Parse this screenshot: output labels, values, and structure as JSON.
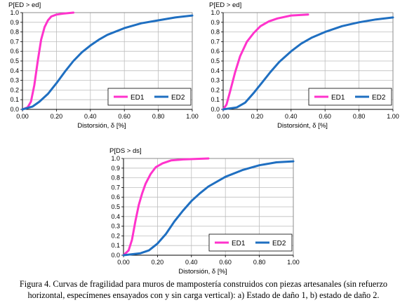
{
  "chart_data": [
    {
      "type": "line",
      "title": "",
      "ylabel": "P[ED > ed]",
      "xlabel": "Distorsión, δ [%]",
      "xlim": [
        0,
        1.0
      ],
      "ylim": [
        0,
        1.0
      ],
      "xticks": [
        "0.00",
        "0.20",
        "0.40",
        "0.60",
        "0.80",
        "1.00"
      ],
      "yticks": [
        "0.0",
        "0.1",
        "0.2",
        "0.3",
        "0.4",
        "0.5",
        "0.6",
        "0.7",
        "0.8",
        "0.9",
        "1.0"
      ],
      "grid": true,
      "legend": "bottom-right",
      "series": [
        {
          "name": "ED1",
          "color": "#ff33cc",
          "x": [
            0.0,
            0.03,
            0.05,
            0.07,
            0.09,
            0.11,
            0.13,
            0.15,
            0.17,
            0.2,
            0.24,
            0.3
          ],
          "y": [
            0.0,
            0.02,
            0.08,
            0.25,
            0.5,
            0.72,
            0.85,
            0.92,
            0.96,
            0.98,
            0.99,
            1.0
          ]
        },
        {
          "name": "ED2",
          "color": "#1f6fc1",
          "x": [
            0.0,
            0.06,
            0.1,
            0.15,
            0.2,
            0.25,
            0.3,
            0.35,
            0.4,
            0.45,
            0.5,
            0.6,
            0.7,
            0.8,
            0.9,
            1.0
          ],
          "y": [
            0.0,
            0.03,
            0.08,
            0.16,
            0.27,
            0.39,
            0.5,
            0.59,
            0.66,
            0.72,
            0.77,
            0.84,
            0.89,
            0.92,
            0.95,
            0.97
          ]
        }
      ]
    },
    {
      "type": "line",
      "title": "",
      "ylabel": "P[ED > ed]",
      "xlabel": "Distorsiónt, δ [%]",
      "xlim": [
        0,
        1.0
      ],
      "ylim": [
        0,
        1.0
      ],
      "xticks": [
        "0.00",
        "0.20",
        "0.40",
        "0.60",
        "0.80",
        "1.00"
      ],
      "yticks": [
        "0.0",
        "0.1",
        "0.2",
        "0.3",
        "0.4",
        "0.5",
        "0.6",
        "0.7",
        "0.8",
        "0.9",
        "1.0"
      ],
      "grid": true,
      "legend": "bottom-right",
      "series": [
        {
          "name": "ED1",
          "color": "#ff33cc",
          "x": [
            0.0,
            0.02,
            0.04,
            0.07,
            0.1,
            0.14,
            0.18,
            0.22,
            0.27,
            0.32,
            0.4,
            0.5
          ],
          "y": [
            0.0,
            0.05,
            0.18,
            0.38,
            0.55,
            0.7,
            0.79,
            0.86,
            0.91,
            0.94,
            0.97,
            0.98
          ]
        },
        {
          "name": "ED2",
          "color": "#1f6fc1",
          "x": [
            0.0,
            0.08,
            0.13,
            0.18,
            0.23,
            0.28,
            0.33,
            0.4,
            0.46,
            0.52,
            0.6,
            0.7,
            0.8,
            0.9,
            1.0
          ],
          "y": [
            0.0,
            0.02,
            0.07,
            0.17,
            0.28,
            0.39,
            0.49,
            0.6,
            0.68,
            0.74,
            0.8,
            0.86,
            0.9,
            0.93,
            0.95
          ]
        }
      ]
    },
    {
      "type": "line",
      "title": "",
      "ylabel": "P[DS > ds]",
      "xlabel": "Distorsión, δ [%]",
      "xlim": [
        0,
        1.0
      ],
      "ylim": [
        0,
        1.0
      ],
      "xticks": [
        "0.00",
        "0.20",
        "0.40",
        "0.60",
        "0.80",
        "1.00"
      ],
      "yticks": [
        "0.0",
        "0.1",
        "0.2",
        "0.3",
        "0.4",
        "0.5",
        "0.6",
        "0.7",
        "0.8",
        "0.9",
        "1.0"
      ],
      "grid": true,
      "legend": "bottom-right",
      "series": [
        {
          "name": "ED1",
          "color": "#ff33cc",
          "x": [
            0.0,
            0.03,
            0.05,
            0.07,
            0.09,
            0.11,
            0.13,
            0.16,
            0.19,
            0.23,
            0.28,
            0.35,
            0.5
          ],
          "y": [
            0.0,
            0.05,
            0.16,
            0.35,
            0.52,
            0.64,
            0.74,
            0.84,
            0.91,
            0.95,
            0.98,
            0.99,
            1.0
          ]
        },
        {
          "name": "ED2",
          "color": "#1f6fc1",
          "x": [
            0.0,
            0.1,
            0.15,
            0.2,
            0.25,
            0.3,
            0.35,
            0.4,
            0.45,
            0.5,
            0.6,
            0.7,
            0.8,
            0.9,
            1.0
          ],
          "y": [
            0.0,
            0.02,
            0.05,
            0.12,
            0.22,
            0.35,
            0.46,
            0.56,
            0.64,
            0.71,
            0.81,
            0.88,
            0.93,
            0.96,
            0.97
          ]
        }
      ]
    }
  ],
  "caption": {
    "line1": "Figura 4. Curvas de fragilidad para muros de mampostería construidos con piezas artesanales (sin refuerzo",
    "line2": "horizontal, especímenes ensayados con y sin carga vertical): a) Estado de daño 1, b) estado de daño 2."
  }
}
